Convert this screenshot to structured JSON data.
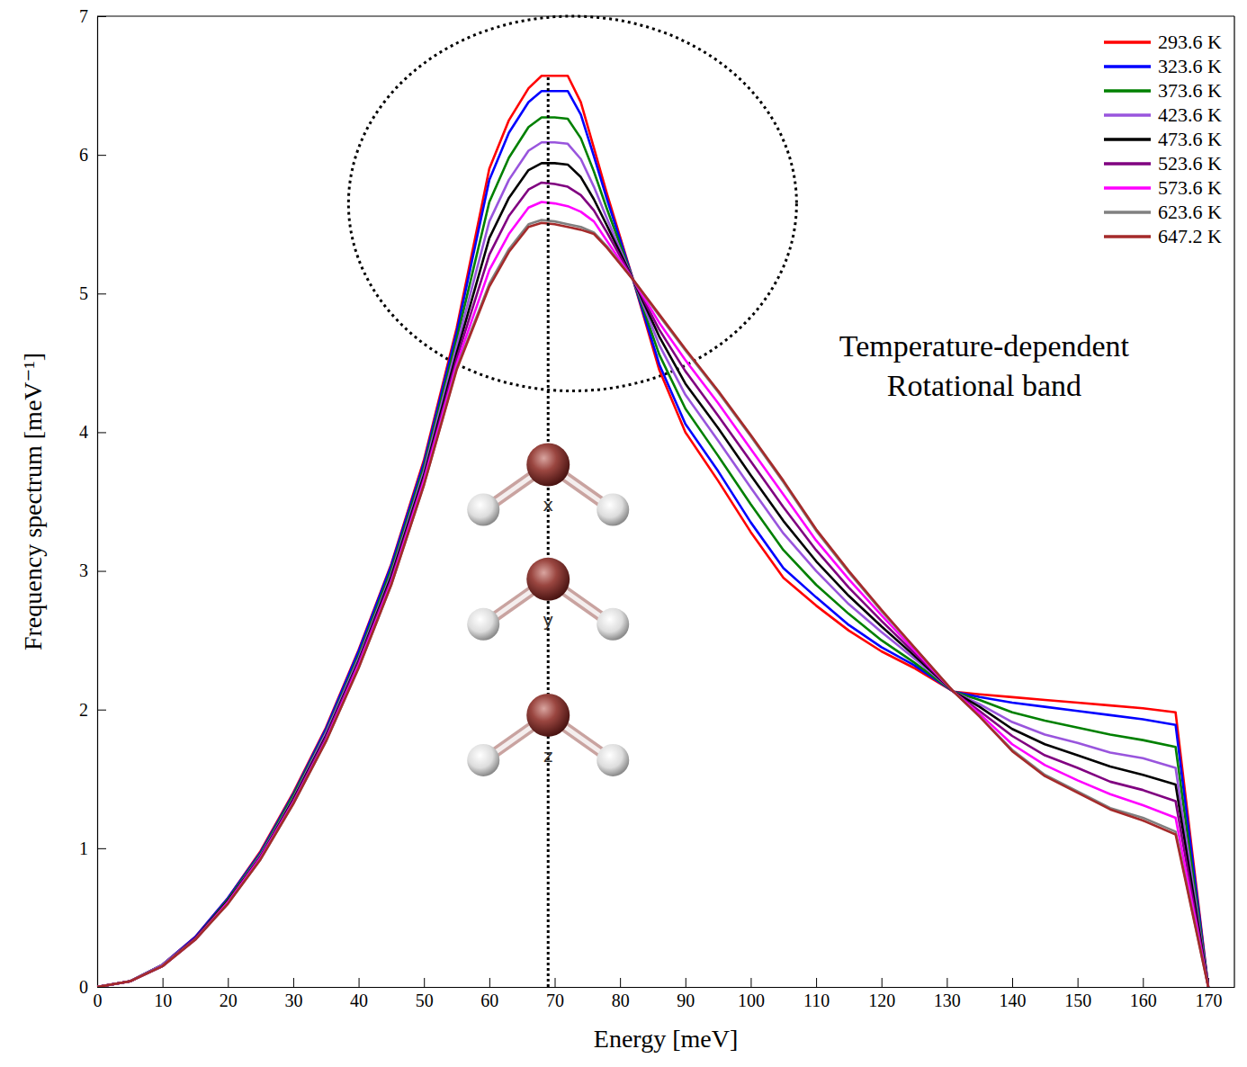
{
  "chart_data": {
    "type": "line",
    "xlabel": "Energy [meV]",
    "ylabel": "Frequency spectrum [meV⁻¹]",
    "annotation_text": [
      "Temperature-dependent",
      "Rotational band"
    ],
    "molecule_labels": [
      "x",
      "y",
      "z"
    ],
    "peak_marker_x": 69,
    "x": [
      0,
      5,
      10,
      15,
      20,
      25,
      30,
      35,
      40,
      45,
      50,
      55,
      60,
      63,
      66,
      68,
      70,
      72,
      74,
      76,
      78,
      82,
      86,
      90,
      95,
      100,
      105,
      110,
      115,
      120,
      125,
      131,
      135,
      140,
      145,
      150,
      155,
      160,
      165,
      170
    ],
    "xlim": [
      0,
      174
    ],
    "ylim": [
      0,
      7
    ],
    "xticks": [
      0,
      10,
      20,
      30,
      40,
      50,
      60,
      70,
      80,
      90,
      100,
      110,
      120,
      130,
      140,
      150,
      160,
      170
    ],
    "yticks": [
      0,
      1,
      2,
      3,
      4,
      5,
      6,
      7
    ],
    "grid": false,
    "legend": "upper right",
    "series": [
      {
        "name": "293.6 K",
        "color": "#ff0000",
        "values": [
          0,
          0.04,
          0.16,
          0.36,
          0.64,
          0.98,
          1.4,
          1.87,
          2.43,
          3.05,
          3.8,
          4.75,
          5.9,
          6.25,
          6.48,
          6.57,
          6.57,
          6.57,
          6.38,
          6.05,
          5.72,
          5.1,
          4.45,
          4.0,
          3.65,
          3.28,
          2.95,
          2.75,
          2.57,
          2.42,
          2.3,
          2.13,
          2.11,
          2.09,
          2.07,
          2.05,
          2.03,
          2.01,
          1.98,
          0
        ]
      },
      {
        "name": "323.6 K",
        "color": "#0000ff",
        "values": [
          0,
          0.04,
          0.16,
          0.36,
          0.64,
          0.97,
          1.39,
          1.86,
          2.42,
          3.04,
          3.78,
          4.72,
          5.82,
          6.16,
          6.38,
          6.46,
          6.46,
          6.46,
          6.29,
          5.99,
          5.68,
          5.1,
          4.49,
          4.06,
          3.72,
          3.35,
          3.02,
          2.81,
          2.61,
          2.45,
          2.32,
          2.13,
          2.09,
          2.05,
          2.02,
          1.99,
          1.96,
          1.93,
          1.89,
          0
        ]
      },
      {
        "name": "373.6 K",
        "color": "#008000",
        "values": [
          0,
          0.04,
          0.16,
          0.35,
          0.63,
          0.96,
          1.38,
          1.84,
          2.39,
          3.01,
          3.75,
          4.67,
          5.66,
          5.98,
          6.2,
          6.27,
          6.27,
          6.26,
          6.12,
          5.88,
          5.61,
          5.1,
          4.56,
          4.17,
          3.83,
          3.48,
          3.15,
          2.9,
          2.69,
          2.5,
          2.34,
          2.13,
          2.07,
          1.98,
          1.92,
          1.87,
          1.82,
          1.78,
          1.73,
          0
        ]
      },
      {
        "name": "423.6 K",
        "color": "#9955dd",
        "values": [
          0,
          0.04,
          0.16,
          0.35,
          0.62,
          0.95,
          1.36,
          1.83,
          2.37,
          2.98,
          3.72,
          4.62,
          5.52,
          5.82,
          6.03,
          6.09,
          6.09,
          6.08,
          5.97,
          5.77,
          5.54,
          5.1,
          4.63,
          4.27,
          3.94,
          3.6,
          3.27,
          3.0,
          2.76,
          2.56,
          2.37,
          2.13,
          2.04,
          1.91,
          1.82,
          1.76,
          1.69,
          1.65,
          1.58,
          0
        ]
      },
      {
        "name": "473.6 K",
        "color": "#000000",
        "values": [
          0,
          0.04,
          0.15,
          0.35,
          0.62,
          0.94,
          1.35,
          1.81,
          2.35,
          2.96,
          3.69,
          4.57,
          5.4,
          5.69,
          5.89,
          5.94,
          5.94,
          5.93,
          5.84,
          5.68,
          5.49,
          5.1,
          4.69,
          4.35,
          4.03,
          3.69,
          3.36,
          3.07,
          2.82,
          2.6,
          2.39,
          2.13,
          2.02,
          1.86,
          1.75,
          1.67,
          1.59,
          1.53,
          1.46,
          0
        ]
      },
      {
        "name": "523.6 K",
        "color": "#800080",
        "values": [
          0,
          0.04,
          0.15,
          0.35,
          0.61,
          0.94,
          1.34,
          1.8,
          2.34,
          2.94,
          3.67,
          4.53,
          5.28,
          5.56,
          5.75,
          5.8,
          5.79,
          5.77,
          5.71,
          5.6,
          5.44,
          5.1,
          4.74,
          4.44,
          4.12,
          3.79,
          3.46,
          3.15,
          2.88,
          2.64,
          2.41,
          2.13,
          1.99,
          1.81,
          1.67,
          1.58,
          1.48,
          1.42,
          1.34,
          0
        ]
      },
      {
        "name": "573.6 K",
        "color": "#ff00ff",
        "values": [
          0,
          0.04,
          0.15,
          0.34,
          0.61,
          0.93,
          1.33,
          1.78,
          2.32,
          2.92,
          3.65,
          4.49,
          5.17,
          5.43,
          5.62,
          5.66,
          5.65,
          5.63,
          5.59,
          5.52,
          5.38,
          5.1,
          4.79,
          4.52,
          4.21,
          3.88,
          3.55,
          3.22,
          2.94,
          2.68,
          2.43,
          2.13,
          1.97,
          1.75,
          1.6,
          1.49,
          1.39,
          1.31,
          1.22,
          0
        ]
      },
      {
        "name": "623.6 K",
        "color": "#808080",
        "values": [
          0,
          0.04,
          0.15,
          0.34,
          0.6,
          0.92,
          1.32,
          1.77,
          2.3,
          2.9,
          3.62,
          4.46,
          5.07,
          5.32,
          5.5,
          5.53,
          5.52,
          5.5,
          5.48,
          5.44,
          5.34,
          5.1,
          4.84,
          4.59,
          4.29,
          3.97,
          3.64,
          3.29,
          2.99,
          2.71,
          2.45,
          2.13,
          1.95,
          1.71,
          1.53,
          1.41,
          1.29,
          1.22,
          1.12,
          0
        ]
      },
      {
        "name": "647.2 K",
        "color": "#a52a2a",
        "values": [
          0,
          0.04,
          0.15,
          0.34,
          0.6,
          0.92,
          1.32,
          1.77,
          2.3,
          2.9,
          3.62,
          4.45,
          5.05,
          5.3,
          5.48,
          5.51,
          5.5,
          5.48,
          5.46,
          5.43,
          5.33,
          5.1,
          4.85,
          4.6,
          4.3,
          3.98,
          3.65,
          3.3,
          3.0,
          2.72,
          2.45,
          2.13,
          1.95,
          1.7,
          1.52,
          1.4,
          1.28,
          1.2,
          1.1,
          0
        ]
      }
    ]
  }
}
